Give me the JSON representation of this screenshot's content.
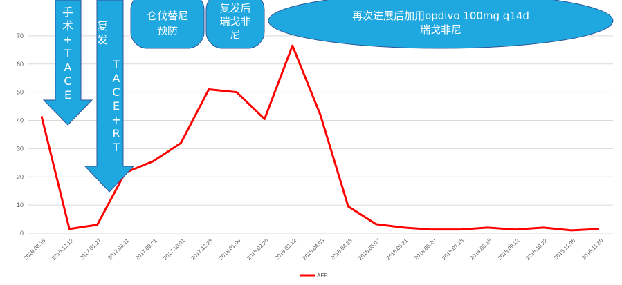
{
  "chart_data": {
    "type": "line",
    "categories": [
      "2016.08.15",
      "2016.12.12",
      "2017.01.27",
      "2017.08.11",
      "2017.09.01",
      "2017.10.01",
      "2017.12.28",
      "2018.01.09",
      "2018.02.26",
      "2018.03.12",
      "2018.04.03",
      "2018.04.23",
      "2018.05.07",
      "2018.05.21",
      "2018.06.20",
      "2018.07.18",
      "2018.08.15",
      "2018.09.12",
      "2018.10.22",
      "2018.11.06",
      "2018.11.20"
    ],
    "series": [
      {
        "name": "AFP",
        "color": "#ff0000",
        "values": [
          41.5,
          1.5,
          3,
          21.5,
          25.5,
          32,
          51,
          50,
          40.5,
          66.5,
          42,
          9.5,
          3.2,
          2,
          1.3,
          1.3,
          2,
          1.3,
          2,
          1,
          1.5
        ]
      }
    ],
    "yticks": [
      0,
      10,
      20,
      30,
      40,
      50,
      60,
      70
    ],
    "ylim": [
      0,
      80
    ],
    "grid": true,
    "legend": "bottom-center",
    "annotations": {
      "arrow1": {
        "lines": [
          "手",
          "术",
          "+",
          "T",
          "A",
          "C",
          "E"
        ]
      },
      "arrow2": {
        "col1": [
          "复",
          "发"
        ],
        "col2": [
          "T",
          "A",
          "C",
          "E",
          "+",
          "R",
          "T"
        ]
      },
      "note1": {
        "lines": [
          "仑伐替尼",
          "预防"
        ]
      },
      "note2": {
        "lines": [
          "复发后",
          "瑞戈非",
          "尼"
        ]
      },
      "note3": {
        "lines": [
          "再次进展后加用opdivo  100mg  q14d",
          "瑞戈非尼"
        ]
      }
    }
  }
}
